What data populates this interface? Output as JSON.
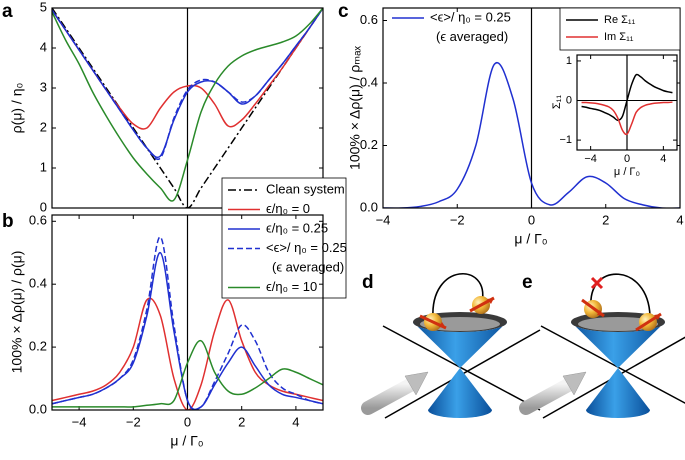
{
  "chart_data": [
    {
      "type": "line",
      "panel": "a",
      "ylabel": "ρ(μ) / η₀",
      "xlim": [
        -5,
        5
      ],
      "ylim": [
        0,
        5
      ],
      "yticks": [
        0,
        1,
        2,
        3,
        4,
        5
      ],
      "zero_line": true,
      "x": [
        -5,
        -4.5,
        -4,
        -3.5,
        -3,
        -2.5,
        -2,
        -1.5,
        -1,
        -0.5,
        0,
        0.5,
        1,
        1.5,
        2,
        2.5,
        3,
        3.5,
        4,
        4.5,
        5
      ],
      "series": [
        {
          "name": "Clean system",
          "color": "#000000",
          "style": "dashdot",
          "values": [
            5,
            4.5,
            4,
            3.5,
            3,
            2.5,
            2,
            1.5,
            1,
            0.5,
            0,
            0.5,
            1,
            1.5,
            2,
            2.5,
            3,
            3.5,
            4,
            4.5,
            5
          ]
        },
        {
          "name": "ϵ/η₀ = 0",
          "color": "#e03030",
          "style": "solid",
          "values": [
            4.95,
            4.45,
            3.95,
            3.45,
            2.95,
            2.5,
            2.1,
            2.0,
            2.5,
            2.9,
            3.05,
            3.0,
            2.6,
            2.05,
            2.2,
            2.6,
            3.05,
            3.5,
            4.0,
            4.5,
            5
          ]
        },
        {
          "name": "ϵ/η₀ = 0.25",
          "color": "#2030d0",
          "style": "solid",
          "values": [
            4.95,
            4.45,
            3.95,
            3.45,
            2.95,
            2.45,
            1.95,
            1.5,
            1.3,
            2.2,
            2.9,
            3.15,
            3.15,
            2.9,
            2.6,
            2.8,
            3.2,
            3.6,
            4.05,
            4.5,
            5
          ]
        },
        {
          "name": "<ϵ>/ η₀ = 0.25",
          "sublabel": "(ϵ averaged)",
          "color": "#2030d0",
          "style": "dashed",
          "values": [
            4.95,
            4.45,
            3.95,
            3.45,
            2.95,
            2.45,
            1.95,
            1.5,
            1.25,
            2.25,
            2.95,
            3.2,
            3.15,
            2.9,
            2.65,
            2.8,
            3.2,
            3.6,
            4.05,
            4.5,
            5
          ]
        },
        {
          "name": "ϵ/η₀ = 10",
          "color": "#2a8a2a",
          "style": "solid",
          "values": [
            4.9,
            4.2,
            3.6,
            2.9,
            2.3,
            1.75,
            1.25,
            0.85,
            0.5,
            0.2,
            1.2,
            2.4,
            3.1,
            3.55,
            3.8,
            3.95,
            4.05,
            4.15,
            4.3,
            4.6,
            5
          ]
        }
      ]
    },
    {
      "type": "line",
      "panel": "b",
      "xlabel": "μ / Γ₀",
      "ylabel": "100% × Δρ(μ) / ρ(μ)",
      "xlim": [
        -5,
        5
      ],
      "ylim": [
        0,
        0.62
      ],
      "zero_line": true,
      "xticks": [
        {
          "value": -4,
          "label": "−4"
        },
        {
          "value": -2,
          "label": "−2"
        },
        0,
        2,
        4
      ],
      "yticks": [
        {
          "value": 0,
          "label": "0.0"
        },
        0.2,
        0.4,
        0.6
      ],
      "x": [
        -5,
        -4.5,
        -4,
        -3.5,
        -3,
        -2.5,
        -2,
        -1.5,
        -1,
        -0.5,
        0,
        0.5,
        1,
        1.5,
        2,
        2.5,
        3,
        3.5,
        4,
        4.5,
        5
      ],
      "series": [
        {
          "color": "#e03030",
          "style": "solid",
          "values": [
            0.03,
            0.04,
            0.05,
            0.06,
            0.08,
            0.12,
            0.2,
            0.35,
            0.3,
            0.1,
            0.0,
            0.08,
            0.25,
            0.35,
            0.22,
            0.12,
            0.08,
            0.06,
            0.05,
            0.04,
            0.03
          ]
        },
        {
          "color": "#2030d0",
          "style": "solid",
          "values": [
            0.02,
            0.03,
            0.04,
            0.05,
            0.07,
            0.1,
            0.15,
            0.3,
            0.5,
            0.25,
            0.03,
            0.01,
            0.08,
            0.15,
            0.2,
            0.14,
            0.08,
            0.05,
            0.04,
            0.03,
            0.02
          ]
        },
        {
          "color": "#2030d0",
          "style": "dashed",
          "values": [
            0.02,
            0.03,
            0.04,
            0.05,
            0.07,
            0.1,
            0.16,
            0.32,
            0.55,
            0.27,
            0.03,
            0.01,
            0.09,
            0.18,
            0.27,
            0.22,
            0.12,
            0.07,
            0.05,
            0.03,
            0.02
          ]
        },
        {
          "color": "#2a8a2a",
          "style": "solid",
          "values": [
            0.01,
            0.01,
            0.01,
            0.01,
            0.01,
            0.01,
            0.01,
            0.015,
            0.02,
            0.03,
            0.15,
            0.22,
            0.12,
            0.06,
            0.05,
            0.07,
            0.1,
            0.13,
            0.12,
            0.1,
            0.08
          ]
        }
      ]
    },
    {
      "type": "line",
      "panel": "c",
      "xlabel": "μ / Γ₀",
      "ylabel": "100% × Δρ(μ) / ρₘₐₓ",
      "xlim": [
        -4,
        4
      ],
      "ylim": [
        0,
        0.64
      ],
      "zero_line": true,
      "xticks": [
        {
          "value": -4,
          "label": "−4"
        },
        {
          "value": -2,
          "label": "−2"
        },
        0,
        2,
        4
      ],
      "yticks": [
        {
          "value": 0,
          "label": "0.0"
        },
        0.2,
        0.4,
        0.6
      ],
      "x": [
        -4,
        -3.5,
        -3,
        -2.5,
        -2,
        -1.5,
        -1,
        -0.5,
        0,
        0.5,
        1,
        1.5,
        2,
        2.5,
        3,
        3.5,
        4
      ],
      "series": [
        {
          "name": "<ϵ>/ η₀ = 0.25",
          "sublabel": "(ϵ averaged)",
          "color": "#2030d0",
          "style": "solid",
          "values": [
            0,
            0,
            0.005,
            0.02,
            0.06,
            0.2,
            0.46,
            0.35,
            0.08,
            0.01,
            0.05,
            0.1,
            0.08,
            0.03,
            0.01,
            0,
            0
          ]
        }
      ]
    },
    {
      "type": "line",
      "xlabel": "μ / Γ₀",
      "ylabel": "Σ₁₁",
      "xlim": [
        -5.5,
        5.5
      ],
      "ylim": [
        -1.25,
        1.15
      ],
      "zero_line": true,
      "zero_hline": true,
      "xticks": [
        {
          "value": -4,
          "label": "−4"
        },
        0,
        4
      ],
      "yticks": [
        {
          "value": -1,
          "label": "−1"
        },
        0,
        1
      ],
      "x": [
        -5,
        -4.5,
        -4,
        -3.5,
        -3,
        -2.5,
        -2,
        -1.5,
        -1,
        -0.5,
        0,
        0.5,
        1,
        1.5,
        2,
        2.5,
        3,
        3.5,
        4,
        4.5,
        5
      ],
      "series": [
        {
          "name": "Re Σ₁₁",
          "color": "#000000",
          "style": "solid",
          "values": [
            -0.15,
            -0.17,
            -0.2,
            -0.22,
            -0.25,
            -0.3,
            -0.35,
            -0.42,
            -0.5,
            -0.4,
            0,
            0.4,
            0.65,
            0.6,
            0.5,
            0.42,
            0.35,
            0.3,
            0.25,
            0.22,
            0.2
          ]
        },
        {
          "name": "Im Σ₁₁",
          "color": "#e03030",
          "style": "solid",
          "values": [
            -0.05,
            -0.05,
            -0.06,
            -0.07,
            -0.09,
            -0.12,
            -0.16,
            -0.25,
            -0.45,
            -0.75,
            -0.85,
            -0.6,
            -0.3,
            -0.18,
            -0.12,
            -0.09,
            -0.07,
            -0.06,
            -0.05,
            -0.05,
            -0.04
          ]
        }
      ]
    }
  ],
  "diagrams": [
    {
      "panel": "d"
    },
    {
      "panel": "e"
    }
  ]
}
